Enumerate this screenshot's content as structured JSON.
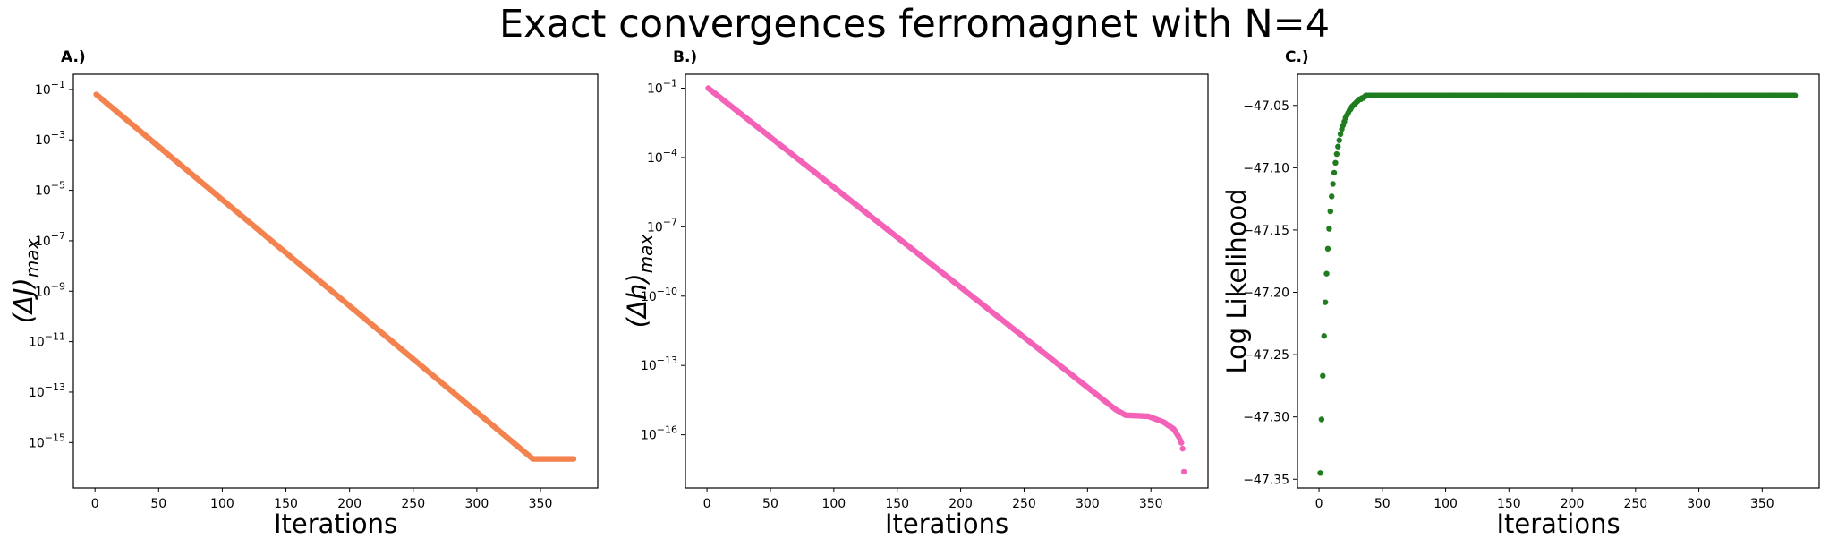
{
  "figure": {
    "title": "Exact convergences ferromagnet with N=4"
  },
  "chart_data": [
    {
      "panel": "A.)",
      "type": "scatter",
      "color": "#f4824f",
      "xlabel": "Iterations",
      "ylabel": {
        "main": "(ΔJ)",
        "sub": "max"
      },
      "yscale": "log",
      "xlim": [
        -17,
        395
      ],
      "ylim_log10": [
        -16.8,
        -0.4
      ],
      "x_ticks": [
        0,
        50,
        100,
        150,
        200,
        250,
        300,
        350
      ],
      "y_ticks": [
        {
          "base": "10",
          "exp": "−1",
          "log": -1
        },
        {
          "base": "10",
          "exp": "−3",
          "log": -3
        },
        {
          "base": "10",
          "exp": "−5",
          "log": -5
        },
        {
          "base": "10",
          "exp": "−7",
          "log": -7
        },
        {
          "base": "10",
          "exp": "−9",
          "log": -9
        },
        {
          "base": "10",
          "exp": "−11",
          "log": -11
        },
        {
          "base": "10",
          "exp": "−13",
          "log": -13
        },
        {
          "base": "10",
          "exp": "−15",
          "log": -15
        }
      ],
      "series": [
        {
          "x_range": [
            1,
            376
          ],
          "log10_y": [
            [
              1,
              -1.2
            ],
            [
              344,
              -15.65
            ],
            [
              376,
              -15.65
            ]
          ]
        }
      ]
    },
    {
      "panel": "B.)",
      "type": "scatter",
      "color": "#f462b8",
      "xlabel": "Iterations",
      "ylabel": {
        "main": "(Δh)",
        "sub": "max"
      },
      "yscale": "log",
      "xlim": [
        -17,
        395
      ],
      "ylim_log10": [
        -18.3,
        -0.4
      ],
      "x_ticks": [
        0,
        50,
        100,
        150,
        200,
        250,
        300,
        350
      ],
      "y_ticks": [
        {
          "base": "10",
          "exp": "−1",
          "log": -1
        },
        {
          "base": "10",
          "exp": "−4",
          "log": -4
        },
        {
          "base": "10",
          "exp": "−7",
          "log": -7
        },
        {
          "base": "10",
          "exp": "−10",
          "log": -10
        },
        {
          "base": "10",
          "exp": "−13",
          "log": -13
        },
        {
          "base": "10",
          "exp": "−16",
          "log": -16
        }
      ],
      "series": [
        {
          "x_range": [
            1,
            376
          ],
          "log10_y": [
            [
              1,
              -1.0
            ],
            [
              322,
              -14.9
            ],
            [
              330,
              -15.15
            ],
            [
              348,
              -15.2
            ],
            [
              360,
              -15.45
            ],
            [
              368,
              -15.75
            ],
            [
              372,
              -16.1
            ],
            [
              374,
              -16.35
            ],
            [
              375,
              -16.6
            ],
            [
              376,
              -17.6
            ]
          ]
        }
      ]
    },
    {
      "panel": "C.)",
      "type": "scatter",
      "color": "#1f7d1f",
      "xlabel": "Iterations",
      "ylabel": {
        "main": "Log Likelihood"
      },
      "yscale": "linear",
      "xlim": [
        -17,
        395
      ],
      "ylim": [
        -47.357,
        -47.025
      ],
      "x_ticks": [
        0,
        50,
        100,
        150,
        200,
        250,
        300,
        350
      ],
      "y_ticks": [
        "−47.35",
        "−47.30",
        "−47.25",
        "−47.20",
        "−47.15",
        "−47.10",
        "−47.05"
      ],
      "y_tick_values": [
        -47.35,
        -47.3,
        -47.25,
        -47.2,
        -47.15,
        -47.1,
        -47.05
      ],
      "series": [
        {
          "x_range": [
            1,
            376
          ],
          "y": [
            -47.345,
            -47.302,
            -47.267,
            -47.235,
            -47.208,
            -47.185,
            -47.165,
            -47.149,
            -47.135,
            -47.123,
            -47.113,
            -47.104,
            -47.096,
            -47.089,
            -47.083,
            -47.078,
            -47.073,
            -47.069,
            -47.066,
            -47.063,
            -47.06,
            -47.058,
            -47.056,
            -47.054,
            -47.053,
            -47.051,
            -47.05,
            -47.049,
            -47.048,
            -47.047,
            -47.046,
            -47.045,
            -47.045,
            -47.044,
            -47.044,
            -47.043
          ],
          "plateau": -47.042
        }
      ]
    }
  ]
}
